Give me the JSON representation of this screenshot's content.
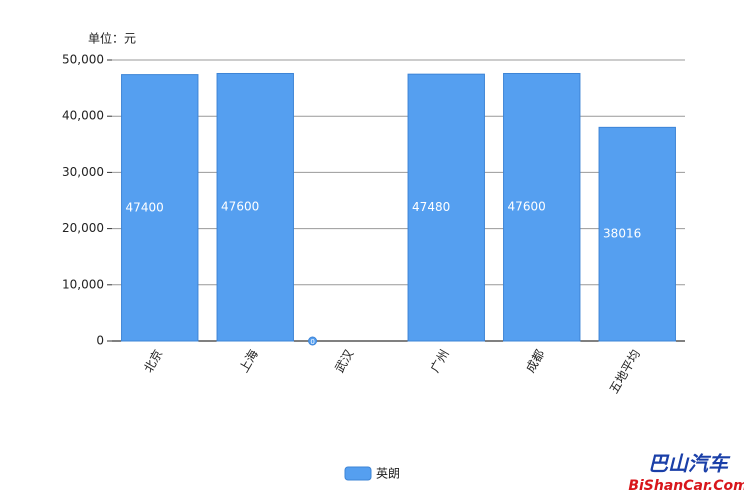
{
  "chart_data": {
    "type": "bar",
    "unit_label": "单位：元",
    "categories": [
      "北京",
      "上海",
      "武汉",
      "广州",
      "成都",
      "五地平均"
    ],
    "series": [
      {
        "name": "英朗",
        "color": "#559ff0",
        "values": [
          47400,
          47600,
          0,
          47480,
          47600,
          38016
        ]
      }
    ],
    "ylim": [
      0,
      50000
    ],
    "yticks": [
      0,
      {
        "value": 10000,
        "label": "10,000"
      },
      {
        "value": 20000,
        "label": "20,000"
      },
      {
        "value": 30000,
        "label": "30,000"
      },
      {
        "value": 40000,
        "label": "40,000"
      },
      {
        "value": 50000,
        "label": "50,000"
      }
    ],
    "grid": true,
    "legend": "bottom"
  },
  "watermark": {
    "title": "巴山汽车",
    "url": "BiShanCar.Com"
  }
}
